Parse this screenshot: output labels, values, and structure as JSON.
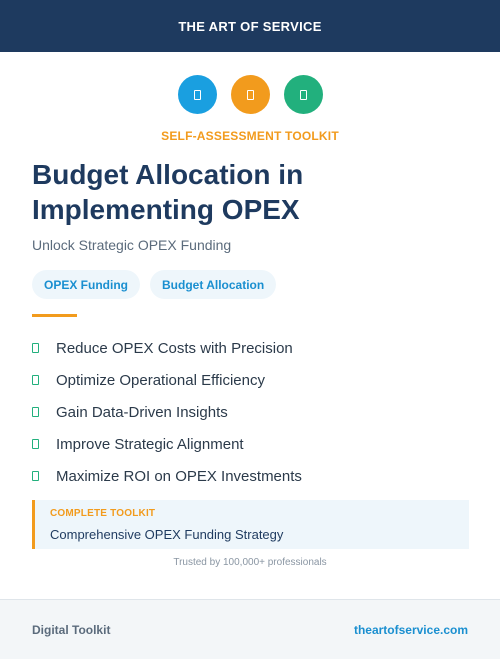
{
  "header": {
    "brand": "THE ART OF SERVICE",
    "background_color": "#1e3a5f"
  },
  "icons": [
    {
      "name": "icon-1",
      "color": "#1a9fe0"
    },
    {
      "name": "icon-2",
      "color": "#f29b1d"
    },
    {
      "name": "icon-3",
      "color": "#22b07d"
    }
  ],
  "eyebrow": "SELF-ASSESSMENT TOOLKIT",
  "title_line1": "Budget Allocation in",
  "title_line2": "Implementing OPEX",
  "subtitle": "Unlock Strategic OPEX Funding",
  "tags": [
    "OPEX Funding",
    "Budget Allocation"
  ],
  "features": [
    "Reduce OPEX Costs with Precision",
    "Optimize Operational Efficiency",
    "Gain Data-Driven Insights",
    "Improve Strategic Alignment",
    "Maximize ROI on OPEX Investments"
  ],
  "callout": {
    "label": "COMPLETE TOOLKIT",
    "text": "Comprehensive OPEX Funding Strategy"
  },
  "trusted": "Trusted by 100,000+ professionals",
  "footer": {
    "left": "Digital Toolkit",
    "right": "theartofservice.com"
  },
  "colors": {
    "accent_orange": "#f29b1d",
    "accent_blue": "#1a8fd0",
    "accent_green": "#22b07d",
    "navy": "#1e3a5f"
  }
}
